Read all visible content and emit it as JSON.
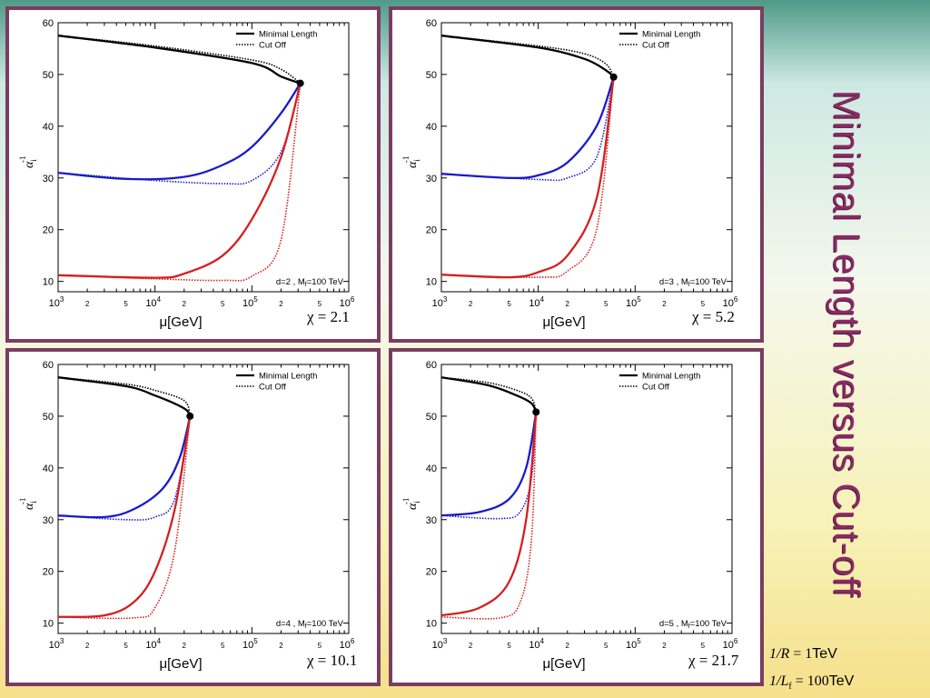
{
  "slide": {
    "title": "Minimal Length versus Cut-off",
    "params": [
      {
        "lhs": "1/R",
        "rhs": "= 1",
        "unit": "TeV"
      },
      {
        "lhs": "1/L",
        "sub": "f",
        "rhs": "= 100",
        "unit": "TeV"
      }
    ],
    "colors": {
      "frame": "#7a3d62",
      "title": "#8c2a65",
      "alpha1": "#d42020",
      "alpha2": "#1a1acc",
      "alpha3": "#000000"
    }
  },
  "chart_data": [
    {
      "type": "line",
      "panel_label": "d=2 , M",
      "panel_label_sub": "f",
      "panel_label_tail": "=100 TeV",
      "chi_label": "χ = 2.1",
      "xlabel": "μ[GeV]",
      "ylabel": "α",
      "ylabel_sub": "i",
      "ylabel_sup": "-1",
      "x_scale": "log",
      "xlim": [
        1000,
        1000000
      ],
      "ylim": [
        8,
        60
      ],
      "yticks": [
        10,
        20,
        30,
        40,
        50,
        60
      ],
      "xticks_major": [
        "10^3",
        "10^4",
        "10^5",
        "10^6"
      ],
      "xticks_minor_labels": [
        "2",
        "5"
      ],
      "legend": {
        "placement": "top-right",
        "entries": [
          "Minimal Length",
          "Cut Off"
        ]
      },
      "unification_point": {
        "x": 316227,
        "y": 48.3
      },
      "series": [
        {
          "name": "Minimal Length",
          "group": "alpha3",
          "style": "solid",
          "points": [
            [
              1000,
              57.5
            ],
            [
              10000,
              55.2
            ],
            [
              100000,
              52.2
            ],
            [
              200000,
              49.6
            ],
            [
              316227,
              48.3
            ]
          ]
        },
        {
          "name": "Cut Off",
          "group": "alpha3",
          "style": "dotted",
          "points": [
            [
              1000,
              57.5
            ],
            [
              10000,
              55.5
            ],
            [
              100000,
              52.8
            ],
            [
              200000,
              51.0
            ],
            [
              316227,
              48.3
            ]
          ]
        },
        {
          "name": "Minimal Length",
          "group": "alpha2",
          "style": "solid",
          "points": [
            [
              1000,
              31.0
            ],
            [
              5000,
              29.8
            ],
            [
              20000,
              30.2
            ],
            [
              50000,
              32.5
            ],
            [
              100000,
              36.0
            ],
            [
              200000,
              42.5
            ],
            [
              316227,
              48.3
            ]
          ]
        },
        {
          "name": "Cut Off",
          "group": "alpha2",
          "style": "dotted",
          "points": [
            [
              1000,
              31.0
            ],
            [
              10000,
              29.5
            ],
            [
              50000,
              28.9
            ],
            [
              100000,
              29.5
            ],
            [
              200000,
              35.0
            ],
            [
              316227,
              48.3
            ]
          ]
        },
        {
          "name": "Minimal Length",
          "group": "alpha1",
          "style": "solid",
          "points": [
            [
              1000,
              11.2
            ],
            [
              10000,
              10.7
            ],
            [
              20000,
              11.5
            ],
            [
              50000,
              15.0
            ],
            [
              100000,
              22.0
            ],
            [
              200000,
              34.0
            ],
            [
              316227,
              48.3
            ]
          ]
        },
        {
          "name": "Cut Off",
          "group": "alpha1",
          "style": "dotted",
          "points": [
            [
              1000,
              11.2
            ],
            [
              10000,
              10.5
            ],
            [
              50000,
              10.2
            ],
            [
              100000,
              11.0
            ],
            [
              200000,
              18.0
            ],
            [
              316227,
              48.3
            ]
          ]
        }
      ]
    },
    {
      "type": "line",
      "panel_label": "d=3 , M",
      "panel_label_sub": "f",
      "panel_label_tail": "=100 TeV",
      "chi_label": "χ = 5.2",
      "xlabel": "μ[GeV]",
      "ylabel": "α",
      "ylabel_sub": "i",
      "ylabel_sup": "-1",
      "x_scale": "log",
      "xlim": [
        1000,
        1000000
      ],
      "ylim": [
        8,
        60
      ],
      "yticks": [
        10,
        20,
        30,
        40,
        50,
        60
      ],
      "xticks_major": [
        "10^3",
        "10^4",
        "10^5",
        "10^6"
      ],
      "xticks_minor_labels": [
        "2",
        "5"
      ],
      "legend": {
        "placement": "top-right",
        "entries": [
          "Minimal Length",
          "Cut Off"
        ]
      },
      "unification_point": {
        "x": 60000,
        "y": 49.5
      },
      "series": [
        {
          "name": "Minimal Length",
          "group": "alpha3",
          "style": "solid",
          "points": [
            [
              1000,
              57.5
            ],
            [
              10000,
              55.2
            ],
            [
              30000,
              53.0
            ],
            [
              50000,
              50.8
            ],
            [
              60000,
              49.5
            ]
          ]
        },
        {
          "name": "Cut Off",
          "group": "alpha3",
          "style": "dotted",
          "points": [
            [
              1000,
              57.5
            ],
            [
              10000,
              55.5
            ],
            [
              30000,
              54.0
            ],
            [
              50000,
              52.0
            ],
            [
              60000,
              49.5
            ]
          ]
        },
        {
          "name": "Minimal Length",
          "group": "alpha2",
          "style": "solid",
          "points": [
            [
              1000,
              30.8
            ],
            [
              5000,
              30.0
            ],
            [
              10000,
              30.5
            ],
            [
              20000,
              33.0
            ],
            [
              40000,
              40.0
            ],
            [
              60000,
              49.5
            ]
          ]
        },
        {
          "name": "Cut Off",
          "group": "alpha2",
          "style": "dotted",
          "points": [
            [
              1000,
              30.8
            ],
            [
              10000,
              29.7
            ],
            [
              20000,
              30.0
            ],
            [
              40000,
              34.0
            ],
            [
              60000,
              49.5
            ]
          ]
        },
        {
          "name": "Minimal Length",
          "group": "alpha1",
          "style": "solid",
          "points": [
            [
              1000,
              11.3
            ],
            [
              5000,
              10.8
            ],
            [
              10000,
              11.8
            ],
            [
              20000,
              15.0
            ],
            [
              40000,
              26.0
            ],
            [
              60000,
              49.5
            ]
          ]
        },
        {
          "name": "Cut Off",
          "group": "alpha1",
          "style": "dotted",
          "points": [
            [
              1000,
              11.3
            ],
            [
              10000,
              10.8
            ],
            [
              20000,
              12.0
            ],
            [
              40000,
              20.0
            ],
            [
              60000,
              49.5
            ]
          ]
        }
      ]
    },
    {
      "type": "line",
      "panel_label": "d=4 , M",
      "panel_label_sub": "f",
      "panel_label_tail": "=100 TeV",
      "chi_label": "χ = 10.1",
      "xlabel": "μ[GeV]",
      "ylabel": "α",
      "ylabel_sub": "i",
      "ylabel_sup": "-1",
      "x_scale": "log",
      "xlim": [
        1000,
        1000000
      ],
      "ylim": [
        8,
        60
      ],
      "yticks": [
        10,
        20,
        30,
        40,
        50,
        60
      ],
      "xticks_major": [
        "10^3",
        "10^4",
        "10^5",
        "10^6"
      ],
      "xticks_minor_labels": [
        "2",
        "5"
      ],
      "legend": {
        "placement": "top-right",
        "entries": [
          "Minimal Length",
          "Cut Off"
        ]
      },
      "unification_point": {
        "x": 23000,
        "y": 50.0
      },
      "series": [
        {
          "name": "Minimal Length",
          "group": "alpha3",
          "style": "solid",
          "points": [
            [
              1000,
              57.5
            ],
            [
              5000,
              55.8
            ],
            [
              10000,
              54.0
            ],
            [
              20000,
              51.5
            ],
            [
              23000,
              50.0
            ]
          ]
        },
        {
          "name": "Cut Off",
          "group": "alpha3",
          "style": "dotted",
          "points": [
            [
              1000,
              57.5
            ],
            [
              5000,
              56.2
            ],
            [
              10000,
              55.0
            ],
            [
              20000,
              53.0
            ],
            [
              23000,
              50.0
            ]
          ]
        },
        {
          "name": "Minimal Length",
          "group": "alpha2",
          "style": "solid",
          "points": [
            [
              1000,
              30.8
            ],
            [
              3000,
              30.5
            ],
            [
              6000,
              32.0
            ],
            [
              12000,
              36.0
            ],
            [
              18000,
              42.0
            ],
            [
              23000,
              50.0
            ]
          ]
        },
        {
          "name": "Cut Off",
          "group": "alpha2",
          "style": "dotted",
          "points": [
            [
              1000,
              30.8
            ],
            [
              5000,
              30.0
            ],
            [
              10000,
              30.5
            ],
            [
              16000,
              34.0
            ],
            [
              23000,
              50.0
            ]
          ]
        },
        {
          "name": "Minimal Length",
          "group": "alpha1",
          "style": "solid",
          "points": [
            [
              1000,
              11.2
            ],
            [
              3000,
              11.5
            ],
            [
              6000,
              14.0
            ],
            [
              10000,
              20.0
            ],
            [
              16000,
              32.0
            ],
            [
              23000,
              50.0
            ]
          ]
        },
        {
          "name": "Cut Off",
          "group": "alpha1",
          "style": "dotted",
          "points": [
            [
              1000,
              11.2
            ],
            [
              6000,
              11.0
            ],
            [
              10000,
              13.0
            ],
            [
              16000,
              24.0
            ],
            [
              23000,
              50.0
            ]
          ]
        }
      ]
    },
    {
      "type": "line",
      "panel_label": "d=5 , M",
      "panel_label_sub": "f",
      "panel_label_tail": "=100 TeV",
      "chi_label": "χ = 21.7",
      "xlabel": "μ[GeV]",
      "ylabel": "α",
      "ylabel_sub": "i",
      "ylabel_sup": "-1",
      "x_scale": "log",
      "xlim": [
        1000,
        1000000
      ],
      "ylim": [
        8,
        60
      ],
      "yticks": [
        10,
        20,
        30,
        40,
        50,
        60
      ],
      "xticks_major": [
        "10^3",
        "10^4",
        "10^5",
        "10^6"
      ],
      "xticks_minor_labels": [
        "2",
        "5"
      ],
      "legend": {
        "placement": "top-right",
        "entries": [
          "Minimal Length",
          "Cut Off"
        ]
      },
      "unification_point": {
        "x": 9500,
        "y": 50.8
      },
      "series": [
        {
          "name": "Minimal Length",
          "group": "alpha3",
          "style": "solid",
          "points": [
            [
              1000,
              57.5
            ],
            [
              3000,
              56.0
            ],
            [
              6000,
              54.0
            ],
            [
              8500,
              52.5
            ],
            [
              9500,
              50.8
            ]
          ]
        },
        {
          "name": "Cut Off",
          "group": "alpha3",
          "style": "dotted",
          "points": [
            [
              1000,
              57.5
            ],
            [
              3000,
              56.5
            ],
            [
              6000,
              55.0
            ],
            [
              8500,
              53.5
            ],
            [
              9500,
              50.8
            ]
          ]
        },
        {
          "name": "Minimal Length",
          "group": "alpha2",
          "style": "solid",
          "points": [
            [
              1000,
              30.8
            ],
            [
              2500,
              31.5
            ],
            [
              5000,
              34.0
            ],
            [
              7500,
              40.0
            ],
            [
              9500,
              50.8
            ]
          ]
        },
        {
          "name": "Cut Off",
          "group": "alpha2",
          "style": "dotted",
          "points": [
            [
              1000,
              30.8
            ],
            [
              4000,
              30.2
            ],
            [
              6500,
              31.5
            ],
            [
              8500,
              38.0
            ],
            [
              9500,
              50.8
            ]
          ]
        },
        {
          "name": "Minimal Length",
          "group": "alpha1",
          "style": "solid",
          "points": [
            [
              1000,
              11.5
            ],
            [
              2500,
              13.0
            ],
            [
              5000,
              18.0
            ],
            [
              7500,
              30.0
            ],
            [
              9500,
              50.8
            ]
          ]
        },
        {
          "name": "Cut Off",
          "group": "alpha1",
          "style": "dotted",
          "points": [
            [
              1000,
              11.2
            ],
            [
              4000,
              11.0
            ],
            [
              6500,
              14.0
            ],
            [
              8500,
              26.0
            ],
            [
              9500,
              50.8
            ]
          ]
        }
      ]
    }
  ]
}
